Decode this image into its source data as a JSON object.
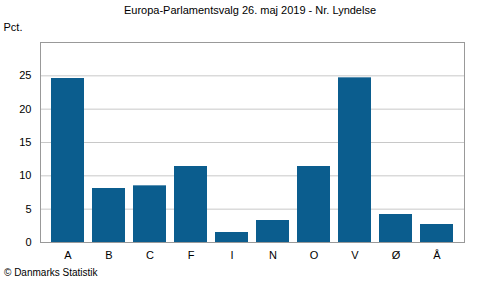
{
  "chart_data": {
    "type": "bar",
    "title": "Europa-Parlamentsvalg 26. maj 2019 - Nr. Lyndelse",
    "caption": "© Danmarks Statistik",
    "y_label": "Pct.",
    "categories": [
      "A",
      "B",
      "C",
      "F",
      "I",
      "N",
      "O",
      "V",
      "Ø",
      "Å"
    ],
    "values": [
      24.6,
      8.1,
      8.5,
      11.4,
      1.5,
      3.3,
      11.4,
      24.7,
      4.2,
      2.7
    ],
    "color": "#0b5d8e",
    "ylim": [
      0,
      30
    ],
    "yticks": [
      0,
      5,
      10,
      15,
      20,
      25
    ],
    "grid": true
  }
}
